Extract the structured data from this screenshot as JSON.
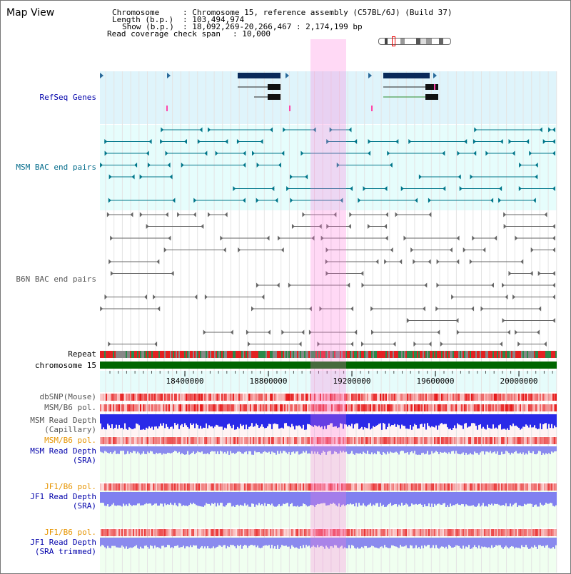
{
  "title": "Map View",
  "info": {
    "chromosome_label": "Chromosome",
    "chromosome_value": ": Chromosome 15, reference assembly (C57BL/6J) (Build 37)",
    "length_label": "Length (b.p.)",
    "length_value": ": 103,494,974",
    "show_label": "Show (b.p.)",
    "show_value": ": 18,092,269-20,266,467 : 2,174,199 bp",
    "coverage_label": "Read coverage check span",
    "coverage_value": ": 10,000"
  },
  "tracks": {
    "refseq": "RefSeq Genes",
    "msm_bac": "MSM BAC end pairs",
    "b6n_bac": "B6N BAC end pairs",
    "repeat": "Repeat",
    "chromosome": "chromosome 15",
    "dbsnp": "dbSNP(Mouse)",
    "msm_b6_pol": "MSM/B6 pol.",
    "msm_depth_cap_1": "MSM Read Depth",
    "msm_depth_cap_2": "(Capillary)",
    "msm_b6_pol_2": "MSM/B6 pol.",
    "msm_depth_sra_1": "MSM Read Depth",
    "msm_depth_sra_2": "(SRA)",
    "jf1_b6_pol": "JF1/B6 pol.",
    "jf1_depth_sra_1": "JF1 Read Depth",
    "jf1_depth_sra_2": "(SRA)",
    "jf1_b6_pol_2": "JF1/B6 pol.",
    "jf1_depth_trim_1": "JF1 Read Depth",
    "jf1_depth_trim_2": "(SRA trimmed)"
  },
  "axis_ticks": [
    "18400000",
    "18800000",
    "19200000",
    "19600000",
    "20000000"
  ],
  "colors": {
    "refseq_label": "#0000aa",
    "msm_label": "#006a8a",
    "b6n_label": "#555555",
    "pol_label": "#e69400",
    "depth_label": "#0000aa",
    "highlight": "#ff88dd",
    "chromosome_bar": "#006600"
  }
}
